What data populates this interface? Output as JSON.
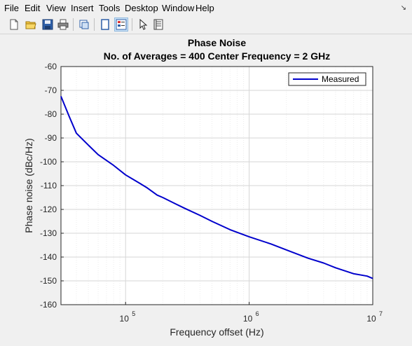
{
  "menu": {
    "items": [
      "File",
      "Edit",
      "View",
      "Insert",
      "Tools",
      "Desktop",
      "Window",
      "Help"
    ]
  },
  "toolbar": {
    "buttons": [
      "new-figure",
      "open-file",
      "save",
      "print",
      "link-plot",
      "hide-plot-tools",
      "show-plot-tools",
      "edit-plot",
      "open-property-inspector"
    ]
  },
  "colors": {
    "series": "#0000cc",
    "grid": "#e0e0e0",
    "axes": "#262626",
    "background": "#ffffff"
  },
  "chart_data": {
    "type": "line",
    "title": "Phase Noise",
    "subtitle": "No. of Averages = 400 Center Frequency = 2 GHz",
    "xlabel": "Frequency offset (Hz)",
    "ylabel": "Phase noise (dBc/Hz)",
    "xscale": "log",
    "xlim": [
      30000,
      10000000
    ],
    "ylim": [
      -160,
      -60
    ],
    "yticks": [
      -60,
      -70,
      -80,
      -90,
      -100,
      -110,
      -120,
      -130,
      -140,
      -150,
      -160
    ],
    "xticks": [
      {
        "value": 100000,
        "base": "10",
        "exp": "5"
      },
      {
        "value": 1000000,
        "base": "10",
        "exp": "6"
      },
      {
        "value": 10000000,
        "base": "10",
        "exp": "7"
      }
    ],
    "grid": true,
    "minor_grid": true,
    "legend": {
      "position": "top-right"
    },
    "series": [
      {
        "name": "Measured",
        "x": [
          30000,
          35000,
          40000,
          50000,
          60000,
          80000,
          100000,
          130000,
          150000,
          180000,
          200000,
          250000,
          300000,
          400000,
          500000,
          700000,
          1000000,
          1500000,
          2000000,
          3000000,
          4000000,
          5000000,
          7000000,
          9000000,
          10000000
        ],
        "y": [
          -72.5,
          -81,
          -88,
          -93,
          -97,
          -101.5,
          -105.5,
          -109,
          -111,
          -114,
          -115,
          -117.5,
          -119.5,
          -122.5,
          -125,
          -128.5,
          -131.5,
          -134.5,
          -137,
          -140.5,
          -142.5,
          -144.5,
          -147,
          -148,
          -149
        ]
      }
    ]
  }
}
